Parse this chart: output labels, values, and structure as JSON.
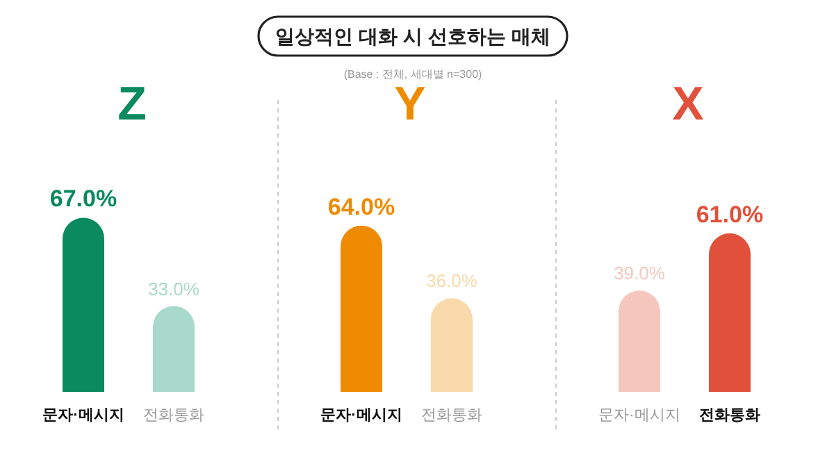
{
  "chart_data": [
    {
      "type": "other",
      "title": "일상적인 대화 시 선호하는 매체",
      "subtitle": "(Base : 전체, 세대별 n=300)"
    },
    {
      "type": "bar",
      "title": "Z",
      "categories": [
        "문자·메시지",
        "전화통화"
      ],
      "values": [
        67.0,
        33.0
      ],
      "value_labels": [
        "67.0%",
        "33.0%"
      ],
      "colors": [
        "#0a8a5e",
        "#a8d9ca"
      ]
    },
    {
      "type": "bar",
      "title": "Y",
      "categories": [
        "문자·메시지",
        "전화통화"
      ],
      "values": [
        64.0,
        36.0
      ],
      "value_labels": [
        "64.0%",
        "36.0%"
      ],
      "colors": [
        "#ef8b00",
        "#f8d9a9"
      ]
    },
    {
      "type": "bar",
      "title": "X",
      "categories": [
        "문자·메시지",
        "전화통화"
      ],
      "values": [
        39.0,
        61.0
      ],
      "value_labels": [
        "39.0%",
        "61.0%"
      ],
      "colors": [
        "#f5c6be",
        "#e0503a"
      ]
    }
  ]
}
